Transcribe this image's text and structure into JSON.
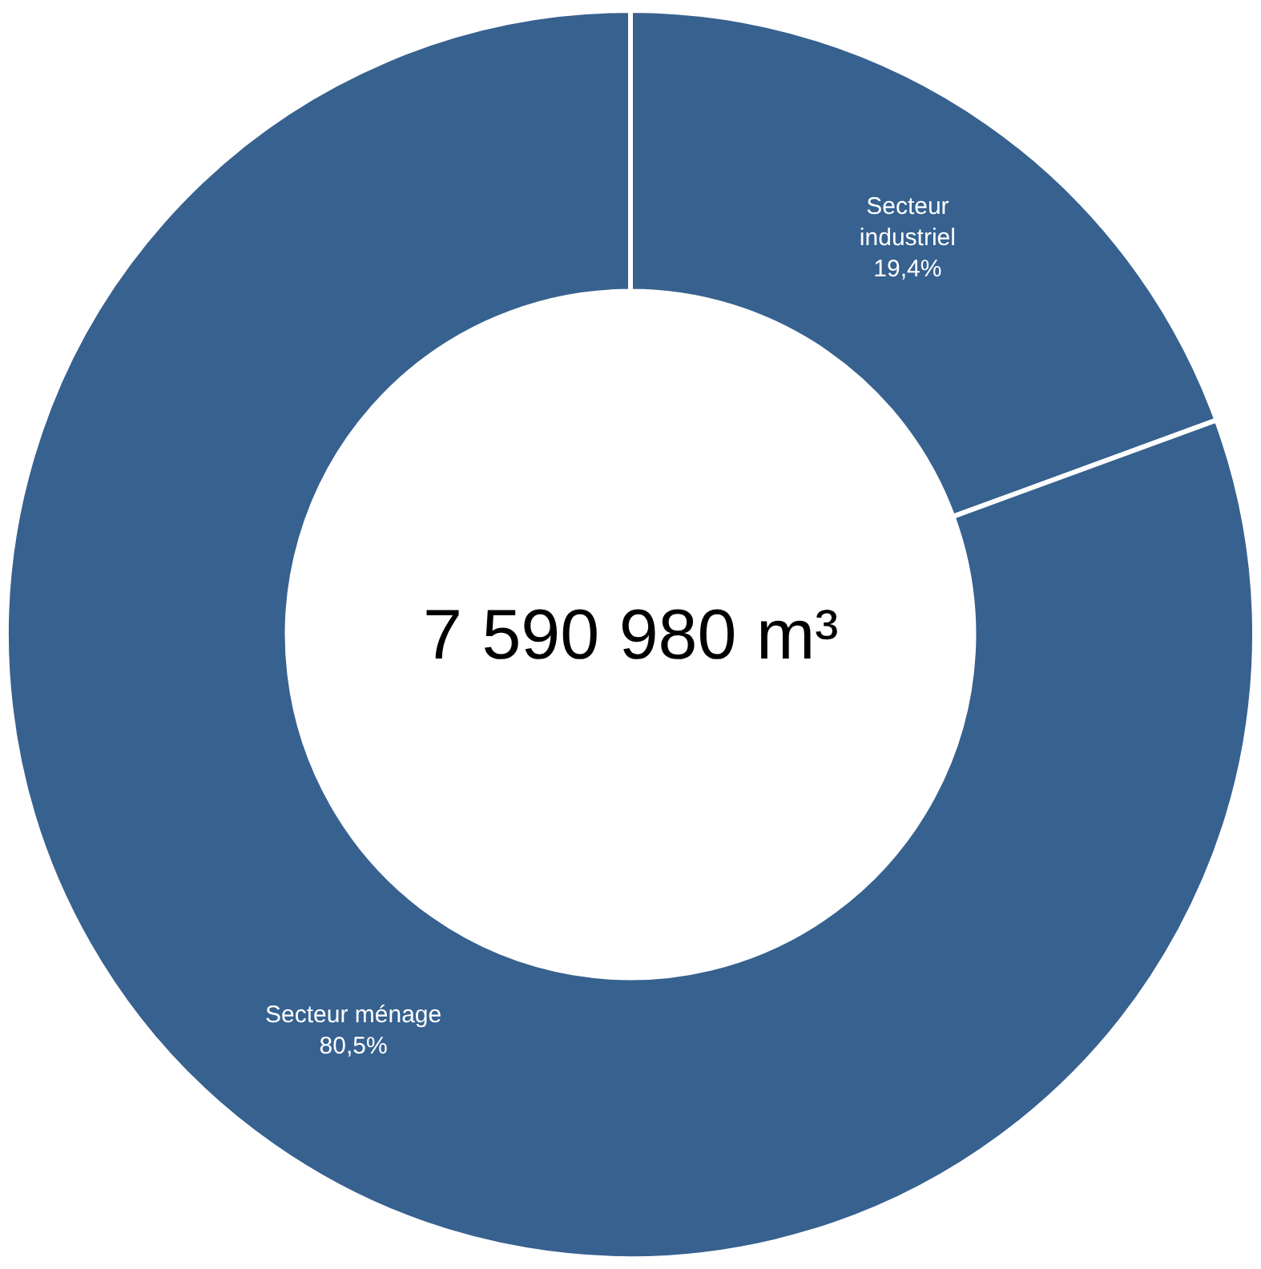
{
  "chart_data": {
    "type": "donut",
    "categories": [
      "Secteur industriel",
      "Secteur ménage"
    ],
    "values": [
      19.4,
      80.5
    ],
    "value_labels": [
      "19,4%",
      "80,5%"
    ],
    "colors": [
      "#37618f",
      "#37618f"
    ],
    "annotations": [
      "7 590 980 m³"
    ],
    "legend": false
  }
}
